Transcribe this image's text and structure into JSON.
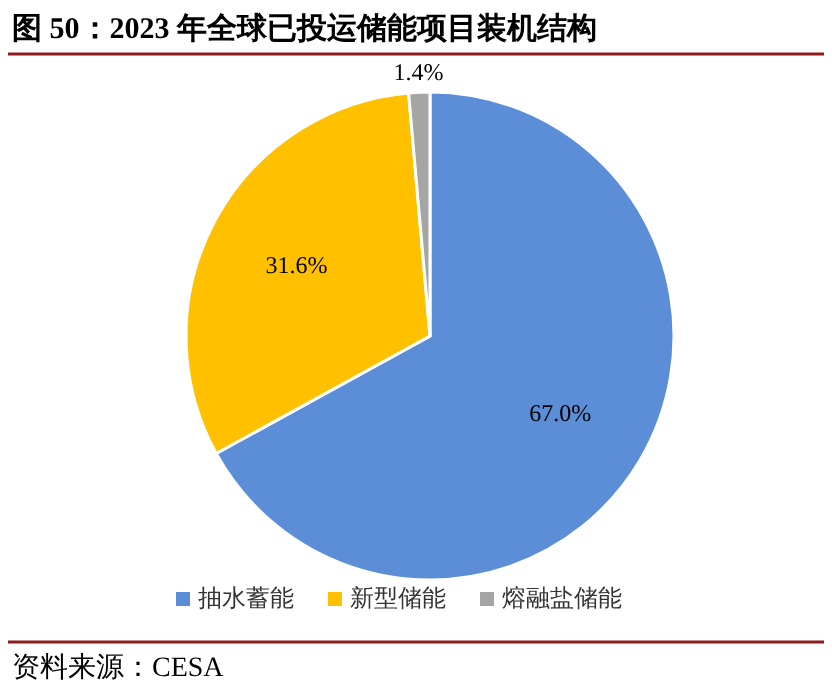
{
  "chart_data": {
    "type": "pie",
    "title": "图 50：2023 年全球已投运储能项目装机结构",
    "categories": [
      "抽水蓄能",
      "新型储能",
      "熔融盐储能"
    ],
    "values": [
      67.0,
      31.6,
      1.4
    ],
    "colors": [
      "#5b8ed6",
      "#ffc000",
      "#a5a5a5"
    ],
    "value_labels": [
      "67.0%",
      "31.6%",
      "1.4%"
    ],
    "legend": "bottom",
    "annotations": [
      "资料来源：CESA"
    ]
  }
}
